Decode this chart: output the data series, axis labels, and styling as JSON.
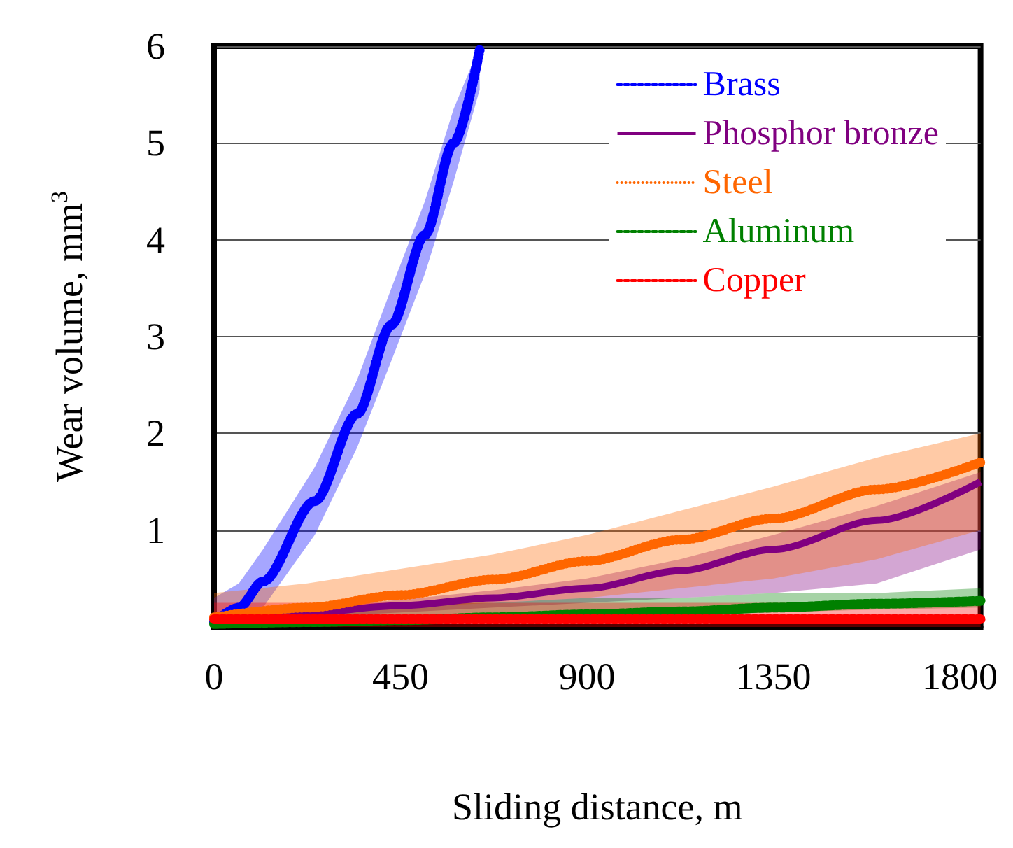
{
  "chart_data": {
    "type": "line",
    "xlabel": "Sliding distance, m",
    "ylabel": "Wear volume, mm$^{3}$",
    "xlim": [
      0,
      1850
    ],
    "xticks": [
      0,
      450,
      900,
      1350,
      1800
    ],
    "ylim": [
      0,
      6
    ],
    "yticks": [
      1,
      2,
      3,
      4,
      5,
      6
    ],
    "grid": "y",
    "legend": "top right",
    "marker": "none",
    "series": [
      {
        "name": "Brass",
        "color": "#0000ff",
        "line_style": "dashed",
        "x": [
          0,
          60,
          118,
          243,
          345,
          428,
          509,
          578,
          641
        ],
        "values": [
          0.05,
          0.2,
          0.47,
          1.3,
          2.2,
          3.12,
          4.05,
          5.0,
          5.96
        ],
        "lower": [
          0,
          0,
          0.2,
          0.95,
          1.85,
          2.75,
          3.65,
          4.6,
          5.55
        ],
        "upper": [
          0.3,
          0.45,
          0.8,
          1.65,
          2.55,
          3.5,
          4.4,
          5.35,
          6.0
        ]
      },
      {
        "name": "Phosphor bronze",
        "color": "#800080",
        "line_style": "solid",
        "x": [
          0,
          225,
          450,
          675,
          900,
          1125,
          1350,
          1600,
          1850
        ],
        "values": [
          0.08,
          0.15,
          0.22,
          0.3,
          0.4,
          0.58,
          0.8,
          1.1,
          1.5
        ],
        "lower": [
          0.05,
          0.1,
          0.15,
          0.2,
          0.25,
          0.3,
          0.35,
          0.45,
          0.8
        ],
        "upper": [
          0.12,
          0.2,
          0.28,
          0.38,
          0.5,
          0.7,
          0.95,
          1.25,
          1.6
        ]
      },
      {
        "name": "Steel",
        "color": "#ff6600",
        "line_style": "dotted",
        "x": [
          0,
          225,
          450,
          675,
          900,
          1125,
          1350,
          1600,
          1850
        ],
        "values": [
          0.1,
          0.2,
          0.33,
          0.49,
          0.68,
          0.9,
          1.12,
          1.42,
          1.7
        ],
        "lower": [
          0.1,
          0.15,
          0.2,
          0.25,
          0.3,
          0.4,
          0.5,
          0.7,
          1.0
        ],
        "upper": [
          0.35,
          0.45,
          0.6,
          0.75,
          0.95,
          1.2,
          1.45,
          1.75,
          2.0
        ]
      },
      {
        "name": "Aluminum",
        "color": "#008000",
        "line_style": "dashed",
        "x": [
          0,
          225,
          450,
          675,
          900,
          1125,
          1350,
          1600,
          1850
        ],
        "values": [
          0.03,
          0.05,
          0.07,
          0.1,
          0.13,
          0.16,
          0.2,
          0.24,
          0.27
        ],
        "lower": [
          0,
          0.02,
          0.05,
          0.08,
          0.1,
          0.12,
          0.15,
          0.18,
          0.2
        ],
        "upper": [
          0.15,
          0.2,
          0.25,
          0.25,
          0.3,
          0.3,
          0.35,
          0.35,
          0.4
        ]
      },
      {
        "name": "Copper",
        "color": "#ff0000",
        "line_style": "dashed",
        "x": [
          0,
          225,
          450,
          675,
          900,
          1125,
          1350,
          1600,
          1850
        ],
        "values": [
          0.08,
          0.08,
          0.08,
          0.08,
          0.08,
          0.08,
          0.08,
          0.08,
          0.08
        ],
        "lower": [
          0,
          0,
          0,
          0,
          0,
          0,
          0,
          0,
          0
        ],
        "upper": [
          0.25,
          0.25,
          0.25,
          0.25,
          0.25,
          0.25,
          0.25,
          0.25,
          0.25
        ]
      }
    ]
  }
}
